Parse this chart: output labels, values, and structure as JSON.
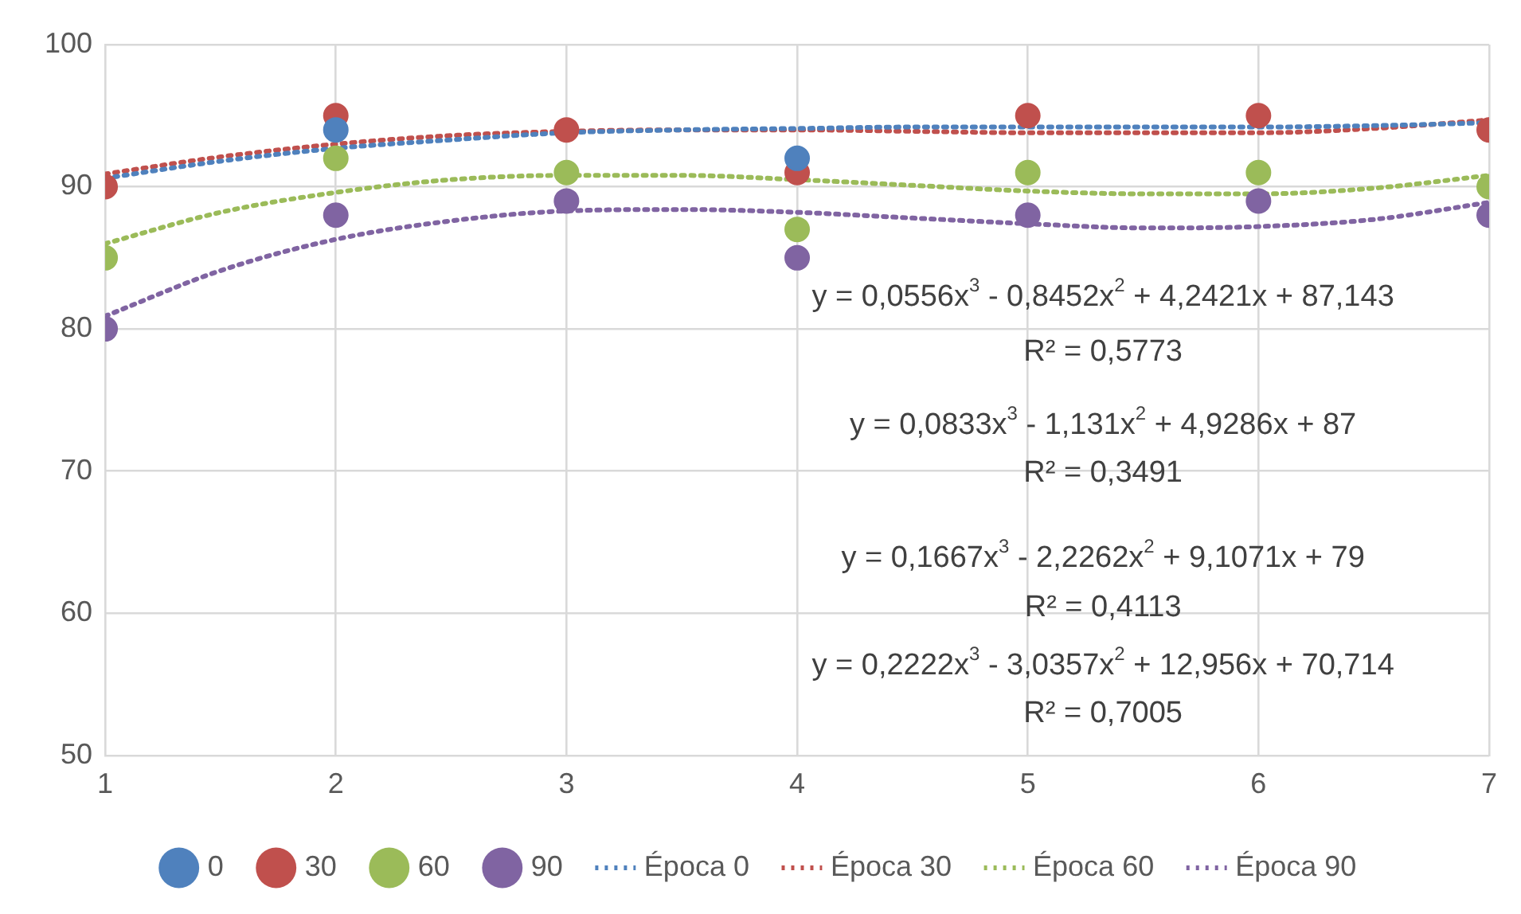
{
  "chart_data": {
    "type": "scatter",
    "x": [
      1,
      2,
      3,
      4,
      5,
      6,
      7
    ],
    "marker": "circle",
    "legend": "bottom",
    "grid": true,
    "xlim": [
      1,
      7
    ],
    "xticks": [
      1,
      2,
      3,
      4,
      5,
      6,
      7
    ],
    "ylim": [
      50,
      100
    ],
    "yticks": [
      50,
      60,
      70,
      80,
      90,
      100
    ],
    "series": [
      {
        "name": "0",
        "color": "#4f81bd",
        "values": [
          null,
          94,
          null,
          92,
          null,
          null,
          null
        ]
      },
      {
        "name": "30",
        "color": "#c0504d",
        "values": [
          90,
          95,
          94,
          91,
          95,
          95,
          94
        ]
      },
      {
        "name": "60",
        "color": "#9bbb59",
        "values": [
          85,
          92,
          91,
          87,
          91,
          91,
          90
        ]
      },
      {
        "name": "90",
        "color": "#8064a2",
        "values": [
          80,
          88,
          89,
          85,
          88,
          89,
          88
        ]
      },
      {
        "name": "Época 0",
        "type": "line",
        "line_style": "dotted",
        "marker": "none",
        "color": "#4f81bd",
        "x": [
          1,
          1.5,
          2,
          2.5,
          3,
          3.5,
          4,
          4.5,
          5,
          5.5,
          6,
          6.5,
          7
        ],
        "values": [
          90.6,
          91.8,
          92.7,
          93.3,
          93.8,
          94.0,
          94.1,
          94.2,
          94.2,
          94.2,
          94.2,
          94.3,
          94.5
        ]
      },
      {
        "name": "Época 30",
        "type": "line",
        "line_style": "dotted",
        "marker": "none",
        "color": "#c0504d",
        "x": [
          1,
          1.5,
          2,
          2.5,
          3,
          3.5,
          4,
          4.5,
          5,
          5.5,
          6,
          6.5,
          7
        ],
        "values": [
          90.9,
          92.1,
          93.0,
          93.6,
          93.9,
          94.0,
          94.0,
          93.9,
          93.8,
          93.8,
          93.8,
          94.1,
          94.7
        ]
      },
      {
        "name": "Época 60",
        "type": "line",
        "line_style": "dotted",
        "marker": "none",
        "color": "#9bbb59",
        "x": [
          1,
          1.5,
          2,
          2.5,
          3,
          3.5,
          4,
          4.5,
          5,
          5.5,
          6,
          6.5,
          7
        ],
        "values": [
          86.0,
          88.2,
          89.6,
          90.5,
          90.8,
          90.8,
          90.5,
          90.1,
          89.7,
          89.5,
          89.5,
          89.9,
          90.8
        ]
      },
      {
        "name": "Época 90",
        "type": "line",
        "line_style": "dotted",
        "marker": "none",
        "color": "#8064a2",
        "x": [
          1,
          1.5,
          2,
          2.5,
          3,
          3.5,
          4,
          4.5,
          5,
          5.5,
          6,
          6.5,
          7
        ],
        "values": [
          80.9,
          84.1,
          86.3,
          87.6,
          88.3,
          88.4,
          88.2,
          87.8,
          87.4,
          87.1,
          87.2,
          87.7,
          88.9
        ]
      }
    ],
    "annotations": [
      "y = 0,0556x$^{3}$ - 0,8452x$^{2}$ + 4,2421x + 87,143",
      "R² = 0,5773",
      "y = 0,0833x$^{3}$ - 1,131x$^{2}$ + 4,9286x + 87",
      "R² = 0,3491",
      "y = 0,1667x$^{3}$ - 2,2262x$^{2}$ + 9,1071x + 79",
      "R² = 0,4113",
      "y = 0,2222x$^{3}$ - 3,0357x$^{2}$ + 12,956x + 70,714",
      "R² = 0,7005"
    ]
  }
}
